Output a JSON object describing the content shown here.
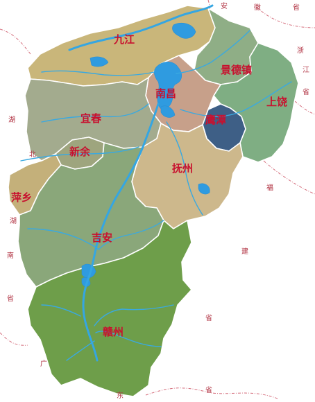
{
  "cities": [
    {
      "id": "jiujiang",
      "label": "九江"
    },
    {
      "id": "jingdezhen",
      "label": "景德镇"
    },
    {
      "id": "nanchang",
      "label": "南昌"
    },
    {
      "id": "shangrao",
      "label": "上饶"
    },
    {
      "id": "yingtan",
      "label": "鹰潭"
    },
    {
      "id": "yichun",
      "label": "宜春"
    },
    {
      "id": "xinyu",
      "label": "新余"
    },
    {
      "id": "fuzhou",
      "label": "抚州"
    },
    {
      "id": "pingxiang",
      "label": "萍乡"
    },
    {
      "id": "jian",
      "label": "吉安"
    },
    {
      "id": "ganzhou",
      "label": "赣州"
    }
  ],
  "neighbors": [
    {
      "id": "hubei-hu",
      "label": "湖"
    },
    {
      "id": "hubei-bei",
      "label": "北"
    },
    {
      "id": "anhui-an",
      "label": "安"
    },
    {
      "id": "anhui-hui",
      "label": "徽"
    },
    {
      "id": "anhui-sheng",
      "label": "省"
    },
    {
      "id": "zhejiang-zhe",
      "label": "浙"
    },
    {
      "id": "zhejiang-jiang",
      "label": "江"
    },
    {
      "id": "zhejiang-sheng",
      "label": "省"
    },
    {
      "id": "hunan-hu",
      "label": "湖"
    },
    {
      "id": "hunan-nan",
      "label": "南"
    },
    {
      "id": "hunan-sheng",
      "label": "省"
    },
    {
      "id": "fujian-fu",
      "label": "福"
    },
    {
      "id": "fujian-jian",
      "label": "建"
    },
    {
      "id": "fujian-sheng",
      "label": "省"
    },
    {
      "id": "guangdong-guang",
      "label": "广"
    },
    {
      "id": "guangdong-dong",
      "label": "东"
    },
    {
      "id": "guangdong-sheng",
      "label": "省"
    }
  ],
  "colors": {
    "jiujiang": "#c9b67a",
    "jingdezhen": "#8fae86",
    "nanchang": "#c7a08a",
    "shangrao": "#7fae83",
    "yingtan": "#3e5f86",
    "yichun": "#a3ab8e",
    "xinyu": "#9ea57e",
    "fuzhou": "#cdb88c",
    "pingxiang": "#c4b07a",
    "jian": "#8aa77a",
    "ganzhou": "#6e9e4a",
    "water": "#2f9be0",
    "label": "#c8102e"
  }
}
